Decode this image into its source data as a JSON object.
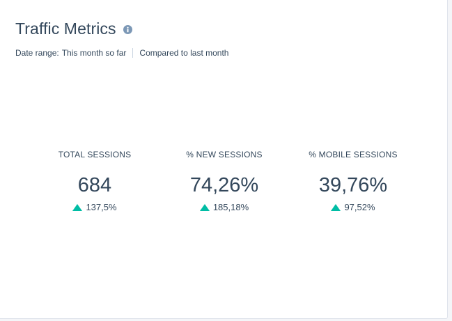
{
  "header": {
    "title": "Traffic Metrics",
    "info_icon": "info-icon"
  },
  "meta": {
    "date_range_label": "Date range:",
    "date_range_value": "This month so far",
    "comparison": "Compared to last month"
  },
  "metrics": [
    {
      "label": "TOTAL SESSIONS",
      "value": "684",
      "change": "137,5%",
      "direction": "up"
    },
    {
      "label": "% NEW SESSIONS",
      "value": "74,26%",
      "change": "185,18%",
      "direction": "up"
    },
    {
      "label": "% MOBILE SESSIONS",
      "value": "39,76%",
      "change": "97,52%",
      "direction": "up"
    }
  ],
  "colors": {
    "text": "#33475b",
    "positive": "#00bda5",
    "info_icon": "#7c98b6"
  }
}
